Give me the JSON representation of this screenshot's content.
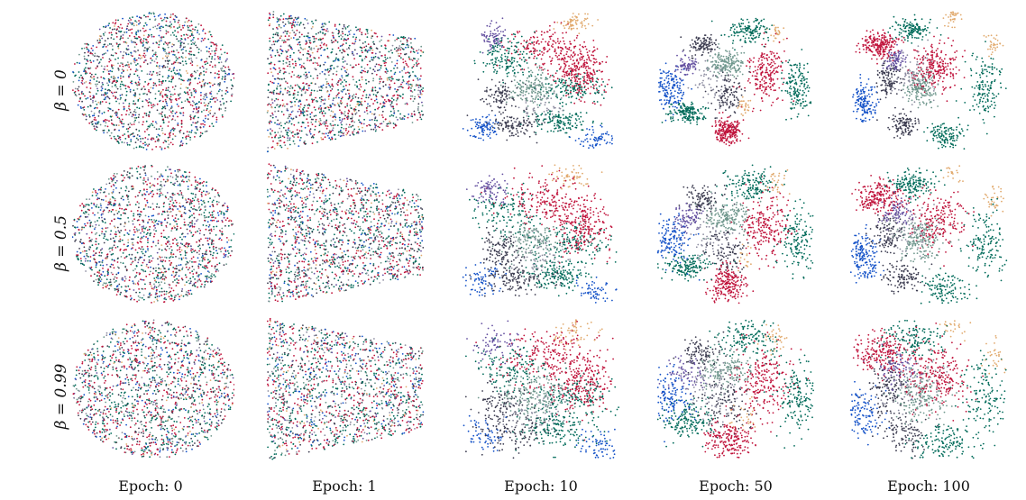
{
  "chart_data": {
    "type": "scatter",
    "description_title": "",
    "row_labels": [
      "β = 0",
      "β = 0.5",
      "β = 0.99"
    ],
    "column_labels": [
      "Epoch: 0",
      "Epoch: 1",
      "Epoch: 10",
      "Epoch: 50",
      "Epoch: 100"
    ],
    "classes": [
      {
        "name": "red",
        "color": "#c0143c"
      },
      {
        "name": "green",
        "color": "#006b5a"
      },
      {
        "name": "blue",
        "color": "#1452c8"
      },
      {
        "name": "dark-gray",
        "color": "#3c3c50"
      },
      {
        "name": "teal-gray",
        "color": "#6e968c"
      },
      {
        "name": "tan",
        "color": "#e1aa6e"
      },
      {
        "name": "purple",
        "color": "#6450a0"
      },
      {
        "name": "slate",
        "color": "#8c8ca0"
      }
    ],
    "points_per_panel": 1600,
    "axes_visible": false,
    "grid": false
  }
}
